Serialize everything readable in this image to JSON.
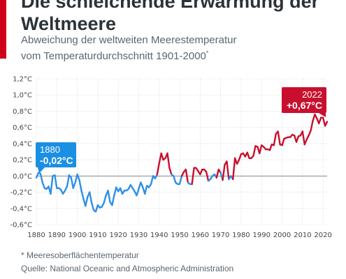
{
  "title": "Die schleichende Erwärmung der Weltmeere",
  "subtitle_line1": "Abweichung der weltweiten Meerestemperatur",
  "subtitle_line2": "vom Temperaturdurchschnitt 1901-2000",
  "subtitle_marker": "*",
  "footnote": "* Meeresoberflächentemperatur",
  "source": "Quelle: National Oceanic and Atmospheric Administration",
  "colors": {
    "accent": "#d0021b",
    "negative": "#2e8fe8",
    "positive": "#c8102e",
    "callout_blue": "#1a8fe3",
    "callout_red": "#c8102e",
    "zero_line": "#888888",
    "grid": "#d0d0d0"
  },
  "callouts": {
    "start_year": "1880",
    "start_value": "-0,02°C",
    "end_year": "2022",
    "end_value": "+0,67°C"
  },
  "chart_data": {
    "type": "line",
    "title": "Die schleichende Erwärmung der Weltmeere",
    "xlabel": "",
    "ylabel": "",
    "xlim": [
      1880,
      2022
    ],
    "ylim": [
      -0.6,
      1.2
    ],
    "grid": true,
    "x_ticks": [
      "1880",
      "1890",
      "1900",
      "1910",
      "1920",
      "1930",
      "1940",
      "1950",
      "1960",
      "1970",
      "1980",
      "1990",
      "2000",
      "2010",
      "2020"
    ],
    "y_ticks": [
      "1,2°C",
      "1,0°C",
      "0,8°C",
      "0,6°C",
      "0,4°C",
      "0,2°C",
      "0,0°C",
      "-0,2°C",
      "-0,4°C",
      "-0,6°C"
    ],
    "x": [
      1880,
      1881,
      1882,
      1883,
      1884,
      1885,
      1886,
      1887,
      1888,
      1889,
      1890,
      1891,
      1892,
      1893,
      1894,
      1895,
      1896,
      1897,
      1898,
      1899,
      1900,
      1901,
      1902,
      1903,
      1904,
      1905,
      1906,
      1907,
      1908,
      1909,
      1910,
      1911,
      1912,
      1913,
      1914,
      1915,
      1916,
      1917,
      1918,
      1919,
      1920,
      1921,
      1922,
      1923,
      1924,
      1925,
      1926,
      1927,
      1928,
      1929,
      1930,
      1931,
      1932,
      1933,
      1934,
      1935,
      1936,
      1937,
      1938,
      1939,
      1940,
      1941,
      1942,
      1943,
      1944,
      1945,
      1946,
      1947,
      1948,
      1949,
      1950,
      1951,
      1952,
      1953,
      1954,
      1955,
      1956,
      1957,
      1958,
      1959,
      1960,
      1961,
      1962,
      1963,
      1964,
      1965,
      1966,
      1967,
      1968,
      1969,
      1970,
      1971,
      1972,
      1973,
      1974,
      1975,
      1976,
      1977,
      1978,
      1979,
      1980,
      1981,
      1982,
      1983,
      1984,
      1985,
      1986,
      1987,
      1988,
      1989,
      1990,
      1991,
      1992,
      1993,
      1994,
      1995,
      1996,
      1997,
      1998,
      1999,
      2000,
      2001,
      2002,
      2003,
      2004,
      2005,
      2006,
      2007,
      2008,
      2009,
      2010,
      2011,
      2012,
      2013,
      2014,
      2015,
      2016,
      2017,
      2018,
      2019,
      2020,
      2021,
      2022
    ],
    "values": [
      -0.02,
      0.04,
      0.03,
      -0.08,
      -0.15,
      -0.16,
      -0.13,
      -0.22,
      0.0,
      0.01,
      -0.15,
      -0.15,
      -0.17,
      -0.22,
      -0.18,
      -0.13,
      0.01,
      -0.02,
      -0.15,
      -0.08,
      0.02,
      -0.05,
      -0.18,
      -0.28,
      -0.37,
      -0.26,
      -0.2,
      -0.33,
      -0.42,
      -0.44,
      -0.36,
      -0.39,
      -0.38,
      -0.33,
      -0.24,
      -0.18,
      -0.32,
      -0.36,
      -0.24,
      -0.14,
      -0.19,
      -0.15,
      -0.22,
      -0.18,
      -0.18,
      -0.16,
      -0.11,
      -0.15,
      -0.19,
      -0.24,
      -0.16,
      -0.08,
      -0.14,
      -0.22,
      -0.12,
      -0.14,
      -0.1,
      0.0,
      -0.03,
      0.02,
      0.16,
      0.28,
      0.2,
      0.22,
      0.28,
      0.1,
      0.02,
      0.0,
      -0.08,
      -0.1,
      -0.1,
      0.0,
      0.05,
      0.08,
      -0.08,
      -0.1,
      -0.1,
      0.1,
      0.1,
      0.06,
      0.02,
      0.08,
      0.08,
      0.05,
      -0.06,
      -0.04,
      0.0,
      0.02,
      -0.02,
      0.08,
      0.04,
      -0.05,
      0.14,
      0.18,
      -0.04,
      0.0,
      -0.04,
      0.22,
      0.15,
      0.2,
      0.27,
      0.28,
      0.24,
      0.29,
      0.22,
      0.22,
      0.25,
      0.37,
      0.36,
      0.28,
      0.38,
      0.36,
      0.33,
      0.33,
      0.32,
      0.39,
      0.38,
      0.52,
      0.55,
      0.39,
      0.38,
      0.46,
      0.47,
      0.48,
      0.48,
      0.51,
      0.5,
      0.42,
      0.49,
      0.5,
      0.55,
      0.39,
      0.45,
      0.5,
      0.56,
      0.68,
      0.76,
      0.71,
      0.65,
      0.72,
      0.72,
      0.62,
      0.67
    ]
  }
}
